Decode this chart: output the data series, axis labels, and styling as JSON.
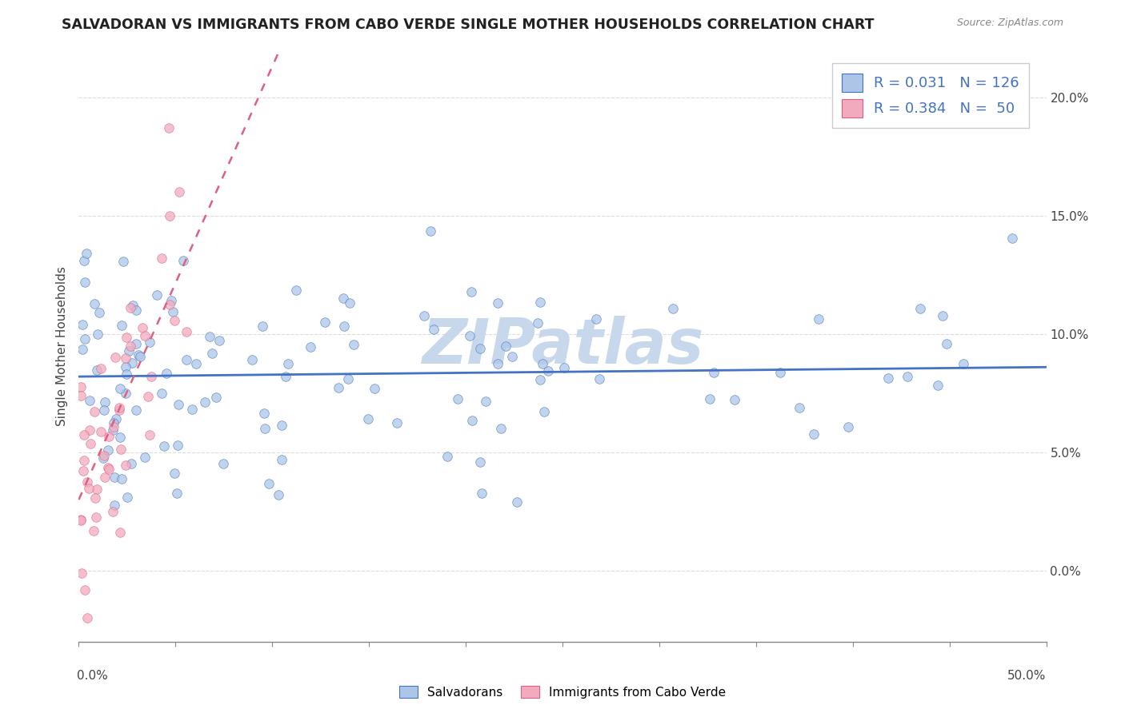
{
  "title": "SALVADORAN VS IMMIGRANTS FROM CABO VERDE SINGLE MOTHER HOUSEHOLDS CORRELATION CHART",
  "source": "Source: ZipAtlas.com",
  "ylabel": "Single Mother Households",
  "right_yticks": [
    "0.0%",
    "5.0%",
    "10.0%",
    "15.0%",
    "20.0%"
  ],
  "right_ytick_vals": [
    0.0,
    0.05,
    0.1,
    0.15,
    0.2
  ],
  "xlim": [
    0.0,
    0.5
  ],
  "ylim": [
    -0.03,
    0.22
  ],
  "legend_r1": "R = ",
  "legend_r1_val": "0.031",
  "legend_n1": "  N = ",
  "legend_n1_val": "126",
  "legend_r2": "R = ",
  "legend_r2_val": "0.384",
  "legend_n2": "  N = ",
  "legend_n2_val": " 50",
  "blue_color": "#adc6e8",
  "pink_color": "#f2abbe",
  "blue_line_color": "#4472c4",
  "pink_line_color": "#e06080",
  "watermark": "ZIPatlas",
  "watermark_color": "#c8d8ec",
  "legend_label_salvadorans": "Salvadorans",
  "legend_label_cabo": "Immigrants from Cabo Verde",
  "title_color": "#222222",
  "source_color": "#888888",
  "grid_color": "#dddddd",
  "axis_color": "#888888",
  "text_color": "#444444"
}
